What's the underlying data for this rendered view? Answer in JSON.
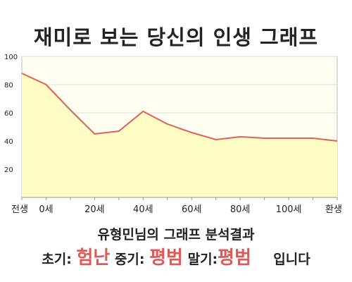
{
  "title": "재미로 보는 당신의 인생 그래프",
  "summary": "유형민님의 그래프 분석결과",
  "result": {
    "early_label": "초기:",
    "early_value": "험난",
    "mid_label": "중기:",
    "mid_value": "평범",
    "late_label": "말기:",
    "late_value": "평범",
    "suffix": "입니다"
  },
  "colors": {
    "line": "#e06060",
    "area": "#fffcc4",
    "plot_bg": "#fffef0",
    "grid": "#dddddd",
    "accent_text": "#e05858"
  },
  "chart_data": {
    "type": "area",
    "title": "재미로 보는 당신의 인생 그래프",
    "xlabel": "",
    "ylabel": "",
    "ylim": [
      0,
      100
    ],
    "yticks": [
      20,
      40,
      60,
      80,
      100
    ],
    "xticks": [
      "전생",
      "0세",
      "20세",
      "40세",
      "60세",
      "80세",
      "100세",
      "환생"
    ],
    "grid": true,
    "legend": "none",
    "x": [
      "전생",
      "0세",
      "",
      "20세",
      "",
      "40세",
      "",
      "60세",
      "",
      "80세",
      "",
      "100세",
      "",
      "환생"
    ],
    "values": [
      88,
      80,
      62,
      45,
      47,
      61,
      52,
      46,
      41,
      43,
      42,
      42,
      42,
      40
    ]
  }
}
